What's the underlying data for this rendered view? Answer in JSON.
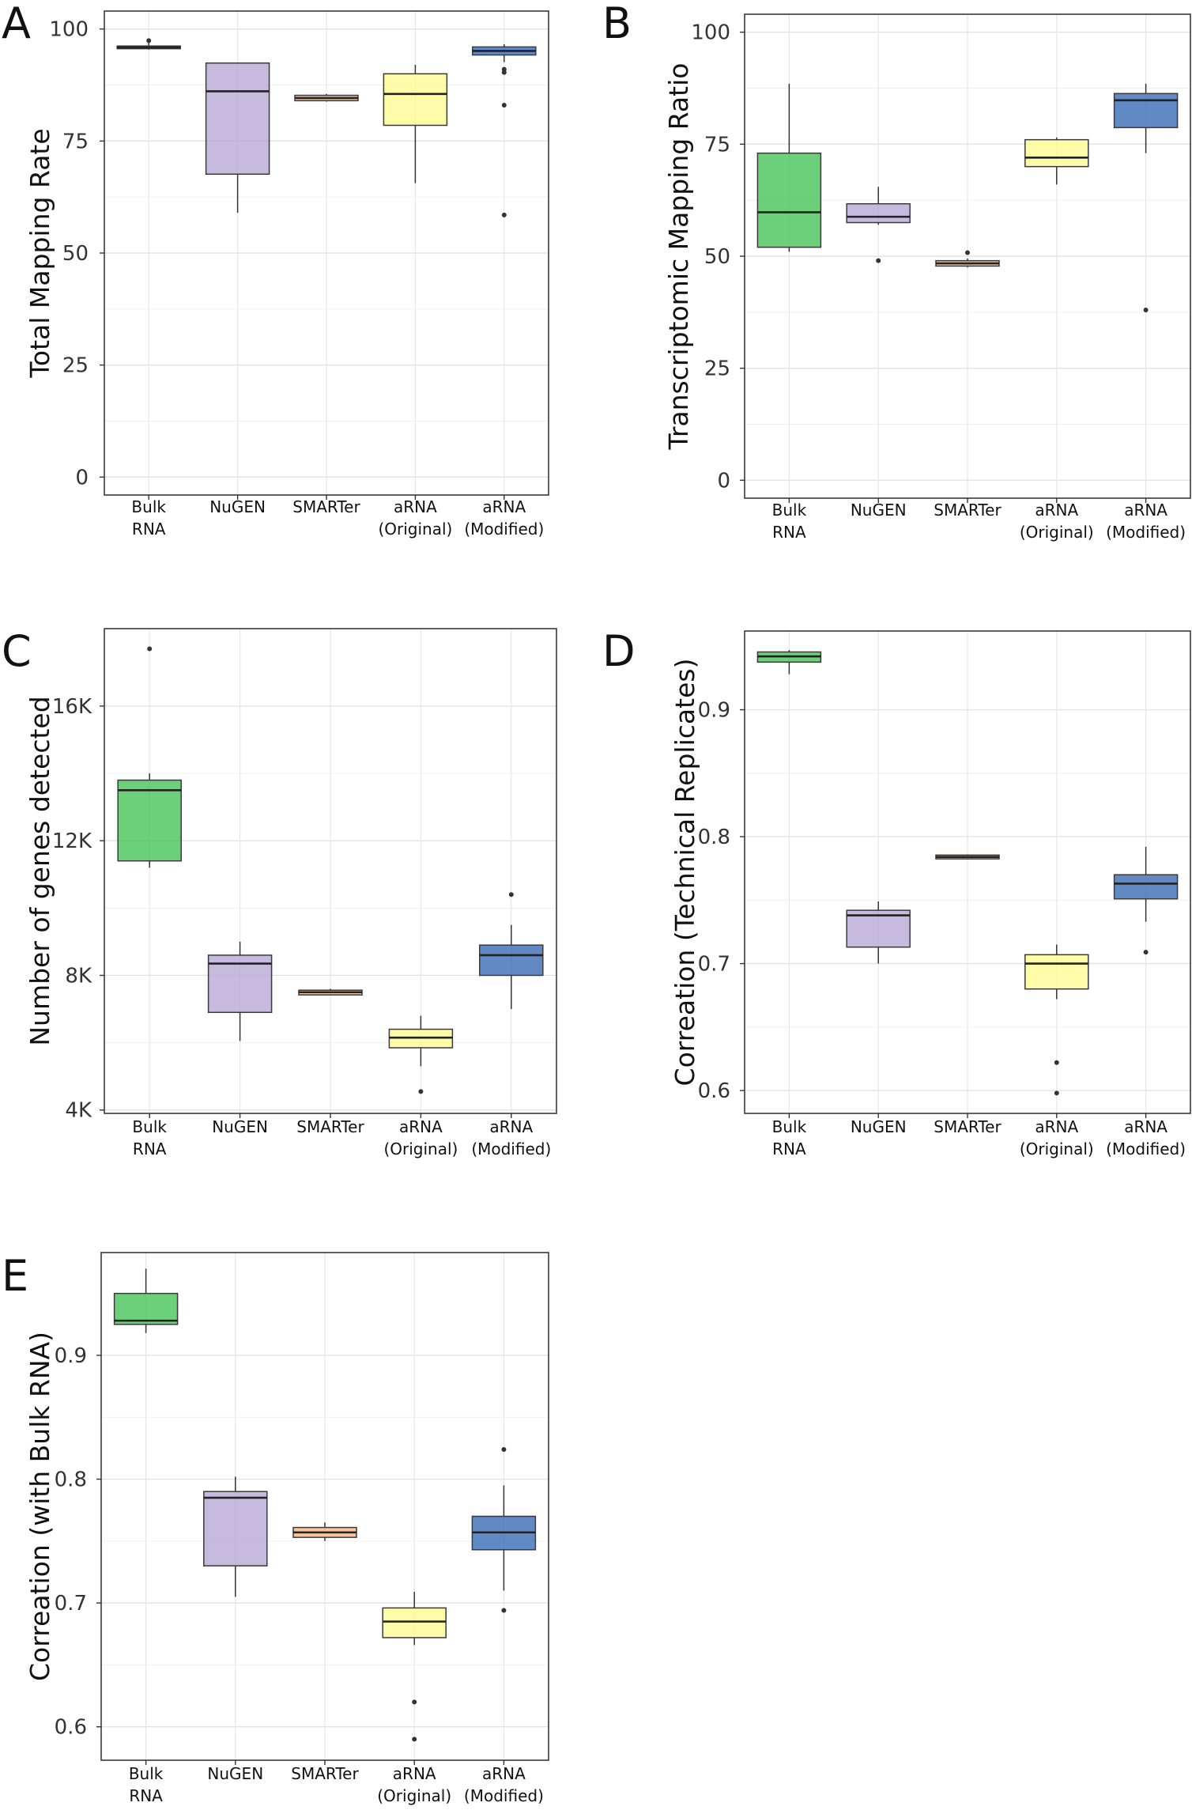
{
  "chart_data": [
    {
      "panel": "A",
      "type": "box",
      "ylabel": "Total Mapping Rate",
      "ylim": [
        -4,
        104
      ],
      "yticks": [
        0,
        25,
        50,
        75,
        100
      ],
      "ytick_labels": [
        "0",
        "25",
        "50",
        "75",
        "100"
      ],
      "grid": true,
      "categories": [
        [
          "Bulk",
          "RNA"
        ],
        [
          "NuGEN"
        ],
        [
          "SMARTer"
        ],
        [
          "aRNA",
          "(Original)"
        ],
        [
          "aRNA",
          "(Modified)"
        ]
      ],
      "colors": [
        "#3bbf4c",
        "#b3a3d3",
        "#f2b27a",
        "#fdfb8c",
        "#2c62b0"
      ],
      "boxes": [
        {
          "q1": 95.6,
          "median": 95.9,
          "q3": 96.2,
          "lo": 95.4,
          "hi": 97.0,
          "outliers": [
            97.4
          ]
        },
        {
          "q1": 67.6,
          "median": 86.1,
          "q3": 92.4,
          "lo": 59.0,
          "hi": 92.4,
          "outliers": []
        },
        {
          "q1": 84.0,
          "median": 84.6,
          "q3": 85.2,
          "lo": 83.8,
          "hi": 85.5,
          "outliers": []
        },
        {
          "q1": 78.5,
          "median": 85.5,
          "q3": 90.0,
          "lo": 65.6,
          "hi": 92.0,
          "outliers": []
        },
        {
          "q1": 94.2,
          "median": 95.1,
          "q3": 96.0,
          "lo": 92.6,
          "hi": 96.6,
          "outliers": [
            91.0,
            90.3,
            83.0,
            58.5
          ]
        }
      ]
    },
    {
      "panel": "B",
      "type": "box",
      "ylabel": "Transcriptomic Mapping Ratio",
      "ylim": [
        -4,
        104
      ],
      "yticks": [
        0,
        25,
        50,
        75,
        100
      ],
      "ytick_labels": [
        "0",
        "25",
        "50",
        "75",
        "100"
      ],
      "grid": true,
      "categories": [
        [
          "Bulk",
          "RNA"
        ],
        [
          "NuGEN"
        ],
        [
          "SMARTer"
        ],
        [
          "aRNA",
          "(Original)"
        ],
        [
          "aRNA",
          "(Modified)"
        ]
      ],
      "colors": [
        "#3bbf4c",
        "#b3a3d3",
        "#f2b27a",
        "#fdfb8c",
        "#2c62b0"
      ],
      "boxes": [
        {
          "q1": 52.0,
          "median": 59.8,
          "q3": 73.0,
          "lo": 51.0,
          "hi": 88.5,
          "outliers": []
        },
        {
          "q1": 57.5,
          "median": 58.8,
          "q3": 61.7,
          "lo": 57.0,
          "hi": 65.5,
          "outliers": [
            49.0
          ]
        },
        {
          "q1": 47.8,
          "median": 48.4,
          "q3": 49.0,
          "lo": 47.5,
          "hi": 49.5,
          "outliers": [
            50.8
          ]
        },
        {
          "q1": 70.0,
          "median": 72.0,
          "q3": 76.0,
          "lo": 66.0,
          "hi": 76.5,
          "outliers": []
        },
        {
          "q1": 78.7,
          "median": 84.8,
          "q3": 86.3,
          "lo": 73.0,
          "hi": 88.5,
          "outliers": [
            38.0
          ]
        }
      ]
    },
    {
      "panel": "C",
      "type": "box",
      "ylabel": "Number of genes detected",
      "ylim": [
        3900,
        18300
      ],
      "yticks": [
        4000,
        8000,
        12000,
        16000
      ],
      "ytick_labels": [
        "4K",
        "8K",
        "12K",
        "16K"
      ],
      "grid": true,
      "categories": [
        [
          "Bulk",
          "RNA"
        ],
        [
          "NuGEN"
        ],
        [
          "SMARTer"
        ],
        [
          "aRNA",
          "(Original)"
        ],
        [
          "aRNA",
          "(Modified)"
        ]
      ],
      "colors": [
        "#3bbf4c",
        "#b3a3d3",
        "#f2b27a",
        "#fdfb8c",
        "#2c62b0"
      ],
      "boxes": [
        {
          "q1": 11400,
          "median": 13500,
          "q3": 13800,
          "lo": 11200,
          "hi": 14000,
          "outliers": [
            17700
          ]
        },
        {
          "q1": 6900,
          "median": 8350,
          "q3": 8600,
          "lo": 6050,
          "hi": 9000,
          "outliers": []
        },
        {
          "q1": 7420,
          "median": 7500,
          "q3": 7560,
          "lo": 7400,
          "hi": 7600,
          "outliers": []
        },
        {
          "q1": 5850,
          "median": 6150,
          "q3": 6400,
          "lo": 5300,
          "hi": 6800,
          "outliers": [
            4550
          ]
        },
        {
          "q1": 8000,
          "median": 8600,
          "q3": 8900,
          "lo": 7000,
          "hi": 9500,
          "outliers": [
            10400
          ]
        }
      ]
    },
    {
      "panel": "D",
      "type": "box",
      "ylabel": "Correation (Technical Replicates)",
      "ylim": [
        0.582,
        0.962
      ],
      "yticks": [
        0.6,
        0.7,
        0.8,
        0.9
      ],
      "ytick_labels": [
        "0.6",
        "0.7",
        "0.8",
        "0.9"
      ],
      "grid": true,
      "categories": [
        [
          "Bulk",
          "RNA"
        ],
        [
          "NuGEN"
        ],
        [
          "SMARTer"
        ],
        [
          "aRNA",
          "(Original)"
        ],
        [
          "aRNA",
          "(Modified)"
        ]
      ],
      "colors": [
        "#3bbf4c",
        "#b3a3d3",
        "#f2b27a",
        "#fdfb8c",
        "#2c62b0"
      ],
      "boxes": [
        {
          "q1": 0.9375,
          "median": 0.942,
          "q3": 0.9455,
          "lo": 0.928,
          "hi": 0.947,
          "outliers": []
        },
        {
          "q1": 0.713,
          "median": 0.738,
          "q3": 0.742,
          "lo": 0.7,
          "hi": 0.749,
          "outliers": []
        },
        {
          "q1": 0.7825,
          "median": 0.784,
          "q3": 0.7855,
          "lo": 0.782,
          "hi": 0.786,
          "outliers": []
        },
        {
          "q1": 0.68,
          "median": 0.7,
          "q3": 0.707,
          "lo": 0.672,
          "hi": 0.715,
          "outliers": [
            0.622,
            0.598
          ]
        },
        {
          "q1": 0.751,
          "median": 0.763,
          "q3": 0.77,
          "lo": 0.733,
          "hi": 0.792,
          "outliers": [
            0.709
          ]
        }
      ]
    },
    {
      "panel": "E",
      "type": "box",
      "ylabel": "Correation (with Bulk RNA)",
      "ylim": [
        0.573,
        0.983
      ],
      "yticks": [
        0.6,
        0.7,
        0.8,
        0.9
      ],
      "ytick_labels": [
        "0.6",
        "0.7",
        "0.8",
        "0.9"
      ],
      "grid": true,
      "categories": [
        [
          "Bulk",
          "RNA"
        ],
        [
          "NuGEN"
        ],
        [
          "SMARTer"
        ],
        [
          "aRNA",
          "(Original)"
        ],
        [
          "aRNA",
          "(Modified)"
        ]
      ],
      "colors": [
        "#3bbf4c",
        "#b3a3d3",
        "#f2b27a",
        "#fdfb8c",
        "#2c62b0"
      ],
      "boxes": [
        {
          "q1": 0.925,
          "median": 0.928,
          "q3": 0.95,
          "lo": 0.918,
          "hi": 0.97,
          "outliers": []
        },
        {
          "q1": 0.73,
          "median": 0.785,
          "q3": 0.79,
          "lo": 0.705,
          "hi": 0.802,
          "outliers": []
        },
        {
          "q1": 0.753,
          "median": 0.757,
          "q3": 0.761,
          "lo": 0.75,
          "hi": 0.765,
          "outliers": []
        },
        {
          "q1": 0.672,
          "median": 0.685,
          "q3": 0.696,
          "lo": 0.666,
          "hi": 0.709,
          "outliers": [
            0.62,
            0.59
          ]
        },
        {
          "q1": 0.743,
          "median": 0.757,
          "q3": 0.77,
          "lo": 0.71,
          "hi": 0.795,
          "outliers": [
            0.824,
            0.694
          ]
        }
      ]
    }
  ]
}
